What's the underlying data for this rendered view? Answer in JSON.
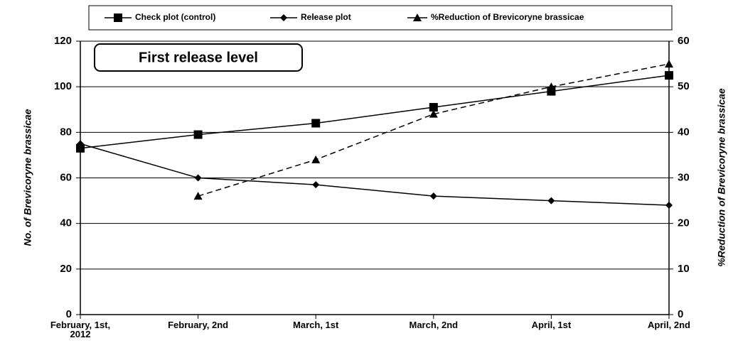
{
  "chart_data": {
    "type": "line",
    "annotation": "First release level",
    "ylabel": "No. of Brevicoryne brassicae",
    "y2label": "%Reduction of Brevicoryne brassicae",
    "categories": [
      "February, 1st, 2012",
      "February, 2nd",
      "March, 1st",
      "March, 2nd",
      "April, 1st",
      "April, 2nd"
    ],
    "series": [
      {
        "name": "Check plot (control)",
        "color": "#000000",
        "marker": "square",
        "dashed": false,
        "values": [
          73,
          79,
          84,
          91,
          98,
          105
        ]
      },
      {
        "name": "Release plot",
        "color": "#000000",
        "marker": "diamond",
        "dashed": false,
        "values": [
          75,
          60,
          57,
          52,
          50,
          48
        ]
      },
      {
        "name": "%Reduction of Brevicoryne brassicae",
        "color": "#000000",
        "marker": "triangle",
        "dashed": true,
        "axis": "y2",
        "values": [
          null,
          26,
          34,
          44,
          50,
          55
        ]
      }
    ],
    "ylim": [
      0,
      120
    ],
    "yticks": [
      0,
      20,
      40,
      60,
      80,
      100,
      120
    ],
    "y2lim": [
      0,
      60
    ],
    "y2ticks": [
      0,
      10,
      20,
      30,
      40,
      50,
      60
    ],
    "grid": true
  }
}
